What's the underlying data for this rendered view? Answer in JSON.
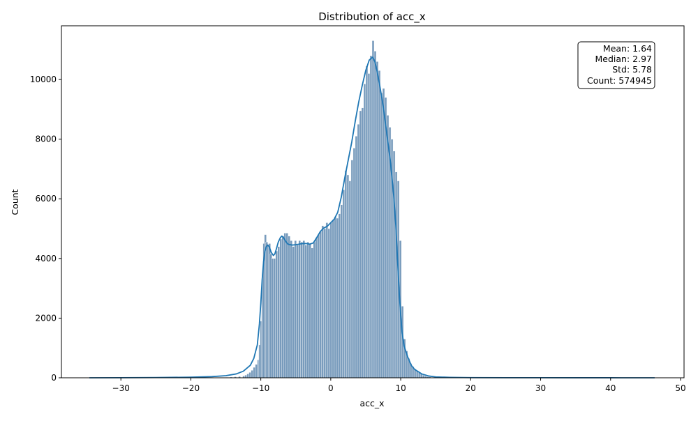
{
  "chart_data": {
    "type": "bar",
    "title": "Distribution of acc_x",
    "xlabel": "acc_x",
    "ylabel": "Count",
    "xlim": [
      -38.5,
      50.5
    ],
    "ylim": [
      0,
      11800
    ],
    "xticks": [
      -30,
      -20,
      -10,
      0,
      10,
      20,
      30,
      40,
      50
    ],
    "xtick_labels": [
      "−30",
      "−20",
      "−10",
      "0",
      "10",
      "20",
      "30",
      "40",
      "50"
    ],
    "yticks": [
      0,
      2000,
      4000,
      6000,
      8000,
      10000
    ],
    "ytick_labels": [
      "0",
      "2000",
      "4000",
      "6000",
      "8000",
      "10000"
    ],
    "grid": false,
    "colors": {
      "bar_fill": "#7196b8",
      "bar_edge": "#ffffff",
      "kde_line": "#1f77b4"
    },
    "histogram": {
      "bin_width": 0.3,
      "bins": [
        [
          -10.5,
          600
        ],
        [
          -10.3,
          1100
        ],
        [
          -10.1,
          1900
        ],
        [
          -9.9,
          3300
        ],
        [
          -9.7,
          4500
        ],
        [
          -9.5,
          4800
        ],
        [
          -9.3,
          4550
        ],
        [
          -9.1,
          4450
        ],
        [
          -8.9,
          4500
        ],
        [
          -8.7,
          4150
        ],
        [
          -8.5,
          4000
        ],
        [
          -8.2,
          4000
        ],
        [
          -7.9,
          4250
        ],
        [
          -7.6,
          4400
        ],
        [
          -7.3,
          4650
        ],
        [
          -7.0,
          4750
        ],
        [
          -6.7,
          4850
        ],
        [
          -6.4,
          4850
        ],
        [
          -6.1,
          4750
        ],
        [
          -5.8,
          4600
        ],
        [
          -5.5,
          4400
        ],
        [
          -5.2,
          4600
        ],
        [
          -4.9,
          4450
        ],
        [
          -4.6,
          4600
        ],
        [
          -4.3,
          4550
        ],
        [
          -4.0,
          4600
        ],
        [
          -3.7,
          4450
        ],
        [
          -3.4,
          4550
        ],
        [
          -3.1,
          4500
        ],
        [
          -2.8,
          4350
        ],
        [
          -2.5,
          4550
        ],
        [
          -2.2,
          4700
        ],
        [
          -1.9,
          4800
        ],
        [
          -1.6,
          4900
        ],
        [
          -1.3,
          5100
        ],
        [
          -1.0,
          5000
        ],
        [
          -0.7,
          5200
        ],
        [
          -0.4,
          5000
        ],
        [
          -0.1,
          5200
        ],
        [
          0.2,
          5300
        ],
        [
          0.5,
          5400
        ],
        [
          0.8,
          5350
        ],
        [
          1.1,
          5500
        ],
        [
          1.4,
          5800
        ],
        [
          1.7,
          6300
        ],
        [
          2.0,
          6950
        ],
        [
          2.3,
          6800
        ],
        [
          2.6,
          6600
        ],
        [
          2.9,
          7300
        ],
        [
          3.2,
          7700
        ],
        [
          3.5,
          8100
        ],
        [
          3.8,
          8500
        ],
        [
          4.1,
          8950
        ],
        [
          4.4,
          9050
        ],
        [
          4.7,
          9850
        ],
        [
          5.0,
          10450
        ],
        [
          5.3,
          10200
        ],
        [
          5.6,
          10800
        ],
        [
          5.9,
          11300
        ],
        [
          6.2,
          10950
        ],
        [
          6.5,
          10600
        ],
        [
          6.8,
          10300
        ],
        [
          7.1,
          9550
        ],
        [
          7.4,
          9700
        ],
        [
          7.7,
          9400
        ],
        [
          8.0,
          8800
        ],
        [
          8.3,
          8400
        ],
        [
          8.6,
          8000
        ],
        [
          8.9,
          7600
        ],
        [
          9.2,
          6900
        ],
        [
          9.5,
          6600
        ],
        [
          9.8,
          4600
        ],
        [
          10.1,
          2400
        ],
        [
          10.4,
          1300
        ],
        [
          10.7,
          900
        ],
        [
          11.0,
          650
        ],
        [
          11.3,
          480
        ],
        [
          11.6,
          380
        ],
        [
          11.9,
          300
        ],
        [
          12.2,
          230
        ],
        [
          12.5,
          170
        ],
        [
          12.8,
          130
        ],
        [
          13.1,
          90
        ],
        [
          13.4,
          60
        ],
        [
          13.7,
          40
        ],
        [
          14.0,
          28
        ],
        [
          14.3,
          18
        ],
        [
          14.6,
          10
        ],
        [
          -12.6,
          60
        ],
        [
          -12.3,
          90
        ],
        [
          -12.0,
          130
        ],
        [
          -11.7,
          180
        ],
        [
          -11.4,
          250
        ],
        [
          -11.1,
          350
        ],
        [
          -10.8,
          450
        ],
        [
          -15.0,
          15
        ],
        [
          -14.4,
          25
        ],
        [
          -13.8,
          35
        ],
        [
          -13.2,
          45
        ]
      ]
    },
    "kde": {
      "x": [
        -34.5,
        -30,
        -25,
        -20,
        -17,
        -15,
        -13.5,
        -12.5,
        -11.5,
        -11,
        -10.5,
        -10.2,
        -10,
        -9.8,
        -9.6,
        -9.4,
        -9.2,
        -9,
        -8.8,
        -8.5,
        -8.2,
        -8,
        -7.8,
        -7.5,
        -7.2,
        -7,
        -6.8,
        -6.5,
        -6.2,
        -6,
        -5.5,
        -5,
        -4.5,
        -4,
        -3.5,
        -3,
        -2.5,
        -2,
        -1.5,
        -1,
        -0.5,
        0,
        0.5,
        1,
        1.5,
        2,
        2.5,
        3,
        3.5,
        4,
        4.5,
        5,
        5.5,
        6,
        6.3,
        6.6,
        7,
        7.5,
        8,
        8.5,
        9,
        9.3,
        9.6,
        9.8,
        10,
        10.2,
        10.5,
        11,
        11.5,
        12,
        13,
        14,
        15,
        17,
        20,
        25,
        30,
        35,
        40,
        46.3
      ],
      "y": [
        0,
        2,
        8,
        20,
        40,
        70,
        130,
        220,
        420,
        650,
        1100,
        1800,
        2500,
        3300,
        3900,
        4250,
        4400,
        4450,
        4400,
        4200,
        4100,
        4150,
        4300,
        4550,
        4700,
        4750,
        4720,
        4600,
        4500,
        4470,
        4450,
        4460,
        4480,
        4500,
        4500,
        4480,
        4520,
        4700,
        4900,
        5020,
        5080,
        5200,
        5320,
        5550,
        6050,
        6700,
        7300,
        7900,
        8600,
        9250,
        9800,
        10300,
        10650,
        10750,
        10600,
        10300,
        9800,
        9100,
        8200,
        7300,
        6100,
        5100,
        3700,
        2800,
        2100,
        1500,
        1050,
        700,
        420,
        280,
        130,
        60,
        30,
        15,
        6,
        3,
        2,
        1,
        1,
        0
      ]
    },
    "stats_box": {
      "mean": "Mean: 1.64",
      "median": "Median: 2.97",
      "std": "Std: 5.78",
      "count": "Count: 574945",
      "placement": "top-right"
    }
  }
}
